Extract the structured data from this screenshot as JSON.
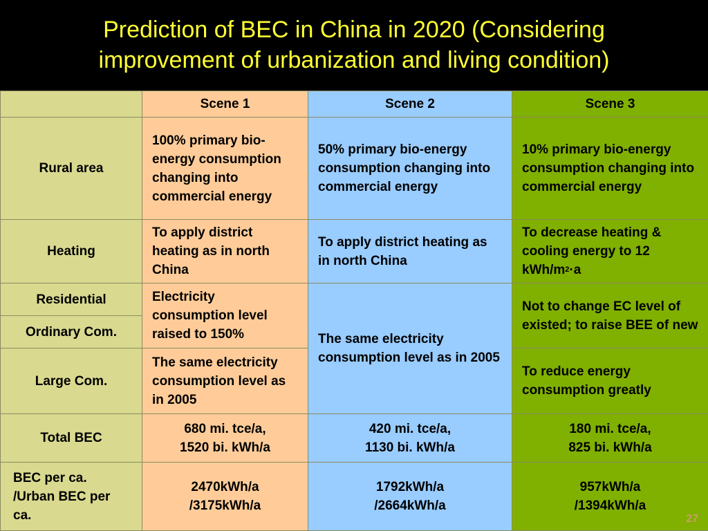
{
  "title": {
    "line1": "Prediction of BEC in China in 2020 (Considering",
    "line2": "improvement of urbanization and living condition)"
  },
  "table": {
    "header": [
      "",
      "Scene 1",
      "Scene 2",
      "Scene 3"
    ],
    "rural": {
      "label": "Rural area",
      "s1": "100% primary bio-energy consumption changing into commercial energy",
      "s2": "50% primary bio-energy consumption changing into commercial energy",
      "s3": "10% primary bio-energy consumption changing into commercial energy"
    },
    "heating": {
      "label": "Heating",
      "s1": "To apply district heating as in north China",
      "s2": "To apply district heating as in north China",
      "s3_a": "To decrease heating & cooling energy to 12 kWh/m",
      "s3_sup": "2",
      "s3_b": "·a"
    },
    "residential": {
      "label": "Residential",
      "s1": "Electricity consumption level raised to 150%",
      "s2": "The same electricity consumption level as in 2005",
      "s3": "Not to change EC level of existed; to raise BEE of new"
    },
    "ordinary_com": {
      "label": "Ordinary Com."
    },
    "large_com": {
      "label": "Large Com.",
      "s1": "The same electricity consumption level as in 2005",
      "s3": "To reduce energy consumption greatly"
    },
    "total": {
      "label": "Total BEC",
      "s1_l1": "680 mi. tce/a,",
      "s1_l2": "1520 bi. kWh/a",
      "s2_l1": "420 mi. tce/a,",
      "s2_l2": "1130 bi. kWh/a",
      "s3_l1": "180 mi. tce/a,",
      "s3_l2": "825 bi. kWh/a"
    },
    "per_capita": {
      "label_l1": "BEC per ca.",
      "label_l2": "/Urban BEC per ca.",
      "s1_l1": "2470kWh/a",
      "s1_l2": "/3175kWh/a",
      "s2_l1": "1792kWh/a",
      "s2_l2": "/2664kWh/a",
      "s3_l1": "957kWh/a",
      "s3_l2": "/1394kWh/a"
    }
  },
  "page_number": "27",
  "colors": {
    "title": "#ffff33",
    "label_col": "#d9d990",
    "scene1": "#ffcc99",
    "scene2": "#99ccff",
    "scene3": "#80b000"
  }
}
